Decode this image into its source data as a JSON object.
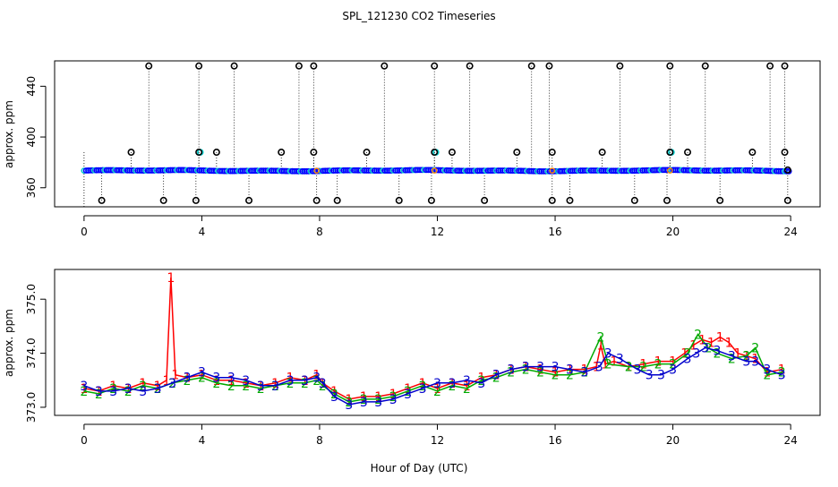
{
  "chart_data": [
    {
      "type": "scatter",
      "title": "SPL_121230  CO2 Timeseries",
      "xlabel": "",
      "ylabel": "approx. ppm",
      "xlim": [
        -1,
        25
      ],
      "ylim": [
        345,
        460
      ],
      "xticks": [
        0,
        4,
        8,
        12,
        16,
        20,
        24
      ],
      "xtick_labels": [
        "0",
        "4",
        "8",
        "12",
        "16",
        "20",
        "24"
      ],
      "yticks": [
        360,
        400,
        440
      ],
      "ytick_labels": [
        "360",
        "400",
        "440"
      ],
      "baseline_ppm": 373.5,
      "colors": {
        "baseline": "#0000ff",
        "baseline_alt": "#00cccc",
        "outlier": "#000000",
        "flag": "#ff8800"
      },
      "outlier_values": [
        350,
        388,
        456
      ],
      "outliers": [
        {
          "x": 0.6,
          "y": 350
        },
        {
          "x": 1.6,
          "y": 388
        },
        {
          "x": 2.2,
          "y": 456
        },
        {
          "x": 2.7,
          "y": 350
        },
        {
          "x": 3.8,
          "y": 350
        },
        {
          "x": 3.9,
          "y": 388
        },
        {
          "x": 3.9,
          "y": 456
        },
        {
          "x": 4.5,
          "y": 388
        },
        {
          "x": 5.1,
          "y": 456
        },
        {
          "x": 5.6,
          "y": 350
        },
        {
          "x": 6.7,
          "y": 388
        },
        {
          "x": 7.3,
          "y": 456
        },
        {
          "x": 7.8,
          "y": 456
        },
        {
          "x": 7.8,
          "y": 388
        },
        {
          "x": 7.9,
          "y": 350
        },
        {
          "x": 8.6,
          "y": 350
        },
        {
          "x": 9.6,
          "y": 388
        },
        {
          "x": 10.2,
          "y": 456
        },
        {
          "x": 10.7,
          "y": 350
        },
        {
          "x": 11.8,
          "y": 350
        },
        {
          "x": 11.9,
          "y": 456
        },
        {
          "x": 11.9,
          "y": 388
        },
        {
          "x": 12.5,
          "y": 388
        },
        {
          "x": 13.1,
          "y": 456
        },
        {
          "x": 13.6,
          "y": 350
        },
        {
          "x": 14.7,
          "y": 388
        },
        {
          "x": 15.2,
          "y": 456
        },
        {
          "x": 15.8,
          "y": 456
        },
        {
          "x": 15.9,
          "y": 388
        },
        {
          "x": 15.9,
          "y": 350
        },
        {
          "x": 16.5,
          "y": 350
        },
        {
          "x": 17.6,
          "y": 388
        },
        {
          "x": 18.2,
          "y": 456
        },
        {
          "x": 18.7,
          "y": 350
        },
        {
          "x": 19.8,
          "y": 350
        },
        {
          "x": 19.9,
          "y": 456
        },
        {
          "x": 19.9,
          "y": 388
        },
        {
          "x": 20.5,
          "y": 388
        },
        {
          "x": 21.1,
          "y": 456
        },
        {
          "x": 21.6,
          "y": 350
        },
        {
          "x": 22.7,
          "y": 388
        },
        {
          "x": 23.3,
          "y": 456
        },
        {
          "x": 23.8,
          "y": 456
        },
        {
          "x": 23.8,
          "y": 388
        },
        {
          "x": 23.9,
          "y": 350
        },
        {
          "x": 23.9,
          "y": 374
        }
      ],
      "cyan_markers": [
        {
          "x": 3.95,
          "y": 388
        },
        {
          "x": 11.95,
          "y": 388
        },
        {
          "x": 19.95,
          "y": 388
        }
      ]
    },
    {
      "type": "line",
      "title": "",
      "xlabel": "Hour of Day (UTC)",
      "ylabel": "approx. ppm",
      "xlim": [
        -1,
        25
      ],
      "ylim": [
        372.85,
        375.55
      ],
      "xticks": [
        0,
        4,
        8,
        12,
        16,
        20,
        24
      ],
      "xtick_labels": [
        "0",
        "4",
        "8",
        "12",
        "16",
        "20",
        "24"
      ],
      "yticks": [
        373.0,
        374.0,
        375.0
      ],
      "ytick_labels": [
        "373.0",
        "374.0",
        "375.0"
      ],
      "series": [
        {
          "name": "1",
          "color": "#ff0000",
          "x": [
            0,
            0.5,
            1,
            1.5,
            2,
            2.5,
            2.8,
            2.95,
            3.1,
            3.5,
            4,
            4.5,
            5,
            5.5,
            6,
            6.5,
            7,
            7.5,
            7.9,
            8.1,
            8.5,
            9,
            9.5,
            10,
            10.5,
            11,
            11.5,
            12,
            12.5,
            13,
            13.5,
            14,
            14.5,
            15,
            15.5,
            16,
            16.5,
            17,
            17.4,
            17.55,
            17.7,
            18,
            18.5,
            19,
            19.5,
            20,
            20.4,
            20.7,
            21,
            21.3,
            21.6,
            21.9,
            22.2,
            22.5,
            22.8,
            23.2,
            23.7
          ],
          "y": [
            373.35,
            373.3,
            373.4,
            373.35,
            373.45,
            373.4,
            373.5,
            375.4,
            373.6,
            373.55,
            373.6,
            373.5,
            373.5,
            373.45,
            373.4,
            373.45,
            373.55,
            373.5,
            373.6,
            373.45,
            373.3,
            373.15,
            373.2,
            373.2,
            373.25,
            373.35,
            373.45,
            373.35,
            373.45,
            373.4,
            373.55,
            373.6,
            373.7,
            373.75,
            373.7,
            373.65,
            373.7,
            373.7,
            373.75,
            374.15,
            373.8,
            373.85,
            373.75,
            373.8,
            373.85,
            373.85,
            374.0,
            374.15,
            374.25,
            374.2,
            374.3,
            374.2,
            374.0,
            373.95,
            373.9,
            373.65,
            373.7
          ]
        },
        {
          "name": "2",
          "color": "#00aa00",
          "x": [
            0,
            0.5,
            1,
            1.5,
            2,
            2.5,
            3,
            3.5,
            4,
            4.5,
            5,
            5.5,
            6,
            6.5,
            7,
            7.5,
            7.9,
            8.1,
            8.5,
            9,
            9.5,
            10,
            10.5,
            11,
            11.5,
            12,
            12.5,
            13,
            13.5,
            14,
            14.5,
            15,
            15.5,
            16,
            16.5,
            17,
            17.55,
            17.8,
            18.5,
            19,
            19.5,
            20,
            20.5,
            20.85,
            21.2,
            21.5,
            22,
            22.5,
            22.8,
            23.2,
            23.7
          ],
          "y": [
            373.3,
            373.25,
            373.35,
            373.3,
            373.4,
            373.35,
            373.45,
            373.5,
            373.55,
            373.45,
            373.4,
            373.4,
            373.35,
            373.4,
            373.45,
            373.45,
            373.5,
            373.4,
            373.25,
            373.1,
            373.15,
            373.15,
            373.2,
            373.3,
            373.4,
            373.3,
            373.4,
            373.35,
            373.5,
            373.55,
            373.65,
            373.7,
            373.65,
            373.6,
            373.6,
            373.65,
            374.3,
            373.8,
            373.75,
            373.75,
            373.8,
            373.8,
            374.0,
            374.35,
            374.1,
            374.0,
            373.9,
            373.95,
            374.1,
            373.6,
            373.65
          ]
        },
        {
          "name": "3",
          "color": "#0000cc",
          "x": [
            0,
            0.5,
            1,
            1.5,
            2,
            2.5,
            3,
            3.5,
            4,
            4.5,
            5,
            5.5,
            6,
            6.5,
            7,
            7.5,
            7.9,
            8.1,
            8.5,
            9,
            9.5,
            10,
            10.5,
            11,
            11.5,
            12,
            12.5,
            13,
            13.5,
            14,
            14.5,
            15,
            15.5,
            16,
            16.5,
            17,
            17.5,
            17.8,
            18.2,
            18.8,
            19.2,
            19.6,
            20,
            20.5,
            20.8,
            21.1,
            21.5,
            22,
            22.5,
            22.8,
            23.2,
            23.7
          ],
          "y": [
            373.4,
            373.3,
            373.3,
            373.35,
            373.3,
            373.35,
            373.45,
            373.55,
            373.65,
            373.55,
            373.55,
            373.5,
            373.4,
            373.4,
            373.5,
            373.5,
            373.55,
            373.45,
            373.2,
            373.05,
            373.1,
            373.1,
            373.15,
            373.25,
            373.35,
            373.45,
            373.45,
            373.5,
            373.45,
            373.6,
            373.7,
            373.75,
            373.75,
            373.75,
            373.7,
            373.65,
            373.75,
            374.0,
            373.9,
            373.7,
            373.6,
            373.6,
            373.7,
            373.9,
            374.0,
            374.1,
            374.05,
            373.95,
            373.85,
            373.85,
            373.7,
            373.6
          ]
        }
      ]
    }
  ]
}
